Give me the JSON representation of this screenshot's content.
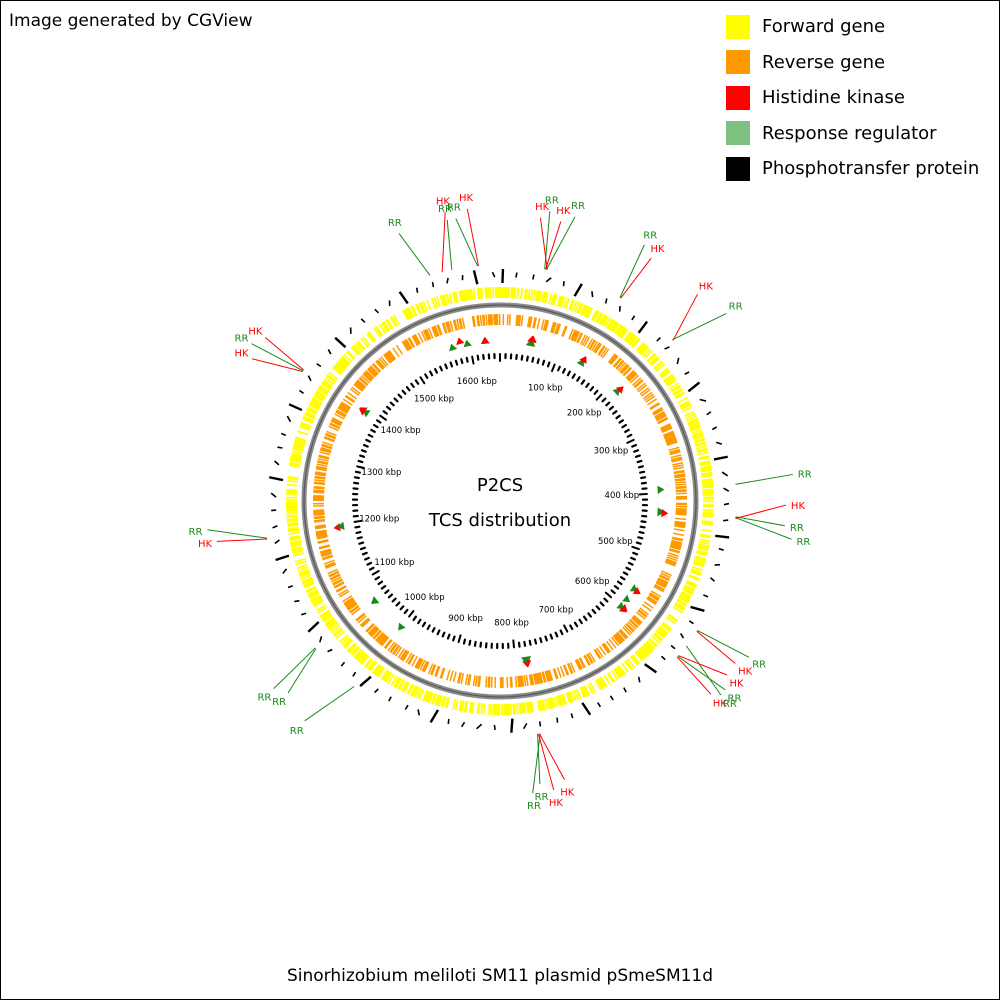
{
  "header": {
    "credit": "Image generated by CGView"
  },
  "legend": [
    {
      "label": "Forward gene",
      "color": "#ffff00"
    },
    {
      "label": "Reverse gene",
      "color": "#ff9900"
    },
    {
      "label": "Histidine kinase",
      "color": "#ff0000"
    },
    {
      "label": "Response regulator",
      "color": "#80c080"
    },
    {
      "label": "Phosphotransfer protein",
      "color": "#000000"
    }
  ],
  "center": {
    "line1": "P2CS",
    "line2": "TCS distribution"
  },
  "footer": {
    "caption": "Sinorhizobium meliloti SM11 plasmid pSmeSM11d"
  },
  "genome": {
    "length_kbp": 1650
  },
  "ticks": [
    {
      "label": "100 kbp",
      "kbp": 100
    },
    {
      "label": "200 kbp",
      "kbp": 200
    },
    {
      "label": "300 kbp",
      "kbp": 300
    },
    {
      "label": "400 kbp",
      "kbp": 400
    },
    {
      "label": "500 kbp",
      "kbp": 500
    },
    {
      "label": "600 kbp",
      "kbp": 600
    },
    {
      "label": "700 kbp",
      "kbp": 700
    },
    {
      "label": "800 kbp",
      "kbp": 800
    },
    {
      "label": "900 kbp",
      "kbp": 900
    },
    {
      "label": "1000 kbp",
      "kbp": 1000
    },
    {
      "label": "1100 kbp",
      "kbp": 1100
    },
    {
      "label": "1200 kbp",
      "kbp": 1200
    },
    {
      "label": "1300 kbp",
      "kbp": 1300
    },
    {
      "label": "1400 kbp",
      "kbp": 1400
    },
    {
      "label": "1500 kbp",
      "kbp": 1500
    },
    {
      "label": "1600 kbp",
      "kbp": 1600
    }
  ],
  "tcs_genes": [
    {
      "label": "RR",
      "kbp": 1625,
      "strand": "reverse"
    },
    {
      "label": "HK",
      "kbp": 1626,
      "strand": "reverse"
    },
    {
      "label": "RR",
      "kbp": 1596,
      "strand": "reverse"
    },
    {
      "label": "HK",
      "kbp": 1585,
      "strand": "forward"
    },
    {
      "label": "RR",
      "kbp": 1571,
      "strand": "reverse"
    },
    {
      "label": "RR",
      "kbp": 50,
      "strand": "reverse"
    },
    {
      "label": "HK",
      "kbp": 51,
      "strand": "forward"
    },
    {
      "label": "RR",
      "kbp": 52,
      "strand": "reverse"
    },
    {
      "label": "HK",
      "kbp": 53,
      "strand": "forward"
    },
    {
      "label": "RR",
      "kbp": 140,
      "strand": "reverse"
    },
    {
      "label": "HK",
      "kbp": 141,
      "strand": "forward"
    },
    {
      "label": "RR",
      "kbp": 215,
      "strand": "reverse"
    },
    {
      "label": "HK",
      "kbp": 216,
      "strand": "forward"
    },
    {
      "label": "RR",
      "kbp": 394,
      "strand": "reverse"
    },
    {
      "label": "RR",
      "kbp": 430,
      "strand": "reverse"
    },
    {
      "label": "RR",
      "kbp": 431,
      "strand": "reverse"
    },
    {
      "label": "HK",
      "kbp": 432,
      "strand": "forward"
    },
    {
      "label": "RR",
      "kbp": 565,
      "strand": "reverse"
    },
    {
      "label": "HK",
      "kbp": 566,
      "strand": "forward"
    },
    {
      "label": "RR",
      "kbp": 586,
      "strand": "reverse"
    },
    {
      "label": "HK",
      "kbp": 600,
      "strand": "forward"
    },
    {
      "label": "RR",
      "kbp": 601,
      "strand": "reverse"
    },
    {
      "label": "HK",
      "kbp": 602,
      "strand": "forward"
    },
    {
      "label": "RR",
      "kbp": 780,
      "strand": "reverse"
    },
    {
      "label": "HK",
      "kbp": 781,
      "strand": "forward"
    },
    {
      "label": "HK",
      "kbp": 782,
      "strand": "forward"
    },
    {
      "label": "RR",
      "kbp": 783,
      "strand": "reverse"
    },
    {
      "label": "RR",
      "kbp": 1000,
      "strand": "reverse"
    },
    {
      "label": "RR",
      "kbp": 1060,
      "strand": "reverse"
    },
    {
      "label": "RR",
      "kbp": 1061,
      "strand": "reverse"
    },
    {
      "label": "HK",
      "kbp": 1195,
      "strand": "forward"
    },
    {
      "label": "RR",
      "kbp": 1196,
      "strand": "reverse"
    },
    {
      "label": "HK",
      "kbp": 1390,
      "strand": "forward"
    },
    {
      "label": "RR",
      "kbp": 1391,
      "strand": "reverse"
    },
    {
      "label": "HK",
      "kbp": 1392,
      "strand": "forward"
    }
  ]
}
